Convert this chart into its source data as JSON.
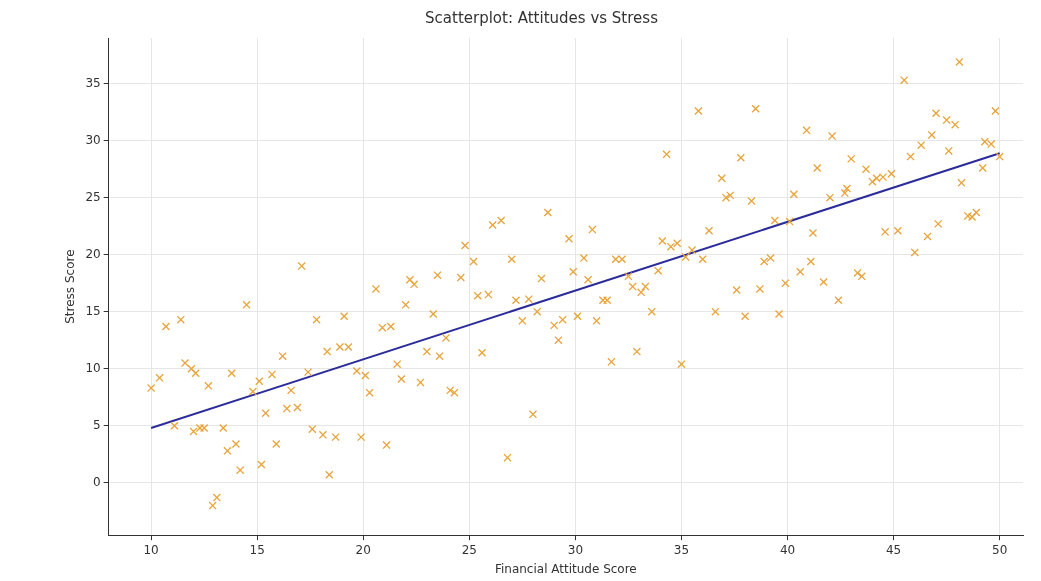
{
  "chart_data": {
    "type": "scatter",
    "title": "Scatterplot: Attitudes vs Stress",
    "xlabel": "Financial Attitude Score",
    "ylabel": "Stress Score",
    "xlim": [
      8,
      51.1
    ],
    "ylim": [
      -4.6,
      39
    ],
    "xticks": [
      10,
      15,
      20,
      25,
      30,
      35,
      40,
      45,
      50
    ],
    "yticks": [
      0,
      5,
      10,
      15,
      20,
      25,
      30,
      35
    ],
    "grid": true,
    "series": [
      {
        "type": "scatter",
        "marker": "cross",
        "color": "#e8a33a",
        "x": [
          10.0,
          10.4,
          10.7,
          11.1,
          11.4,
          11.6,
          11.9,
          12.1,
          12.0,
          12.3,
          12.5,
          12.7,
          12.9,
          13.1,
          13.4,
          13.6,
          13.8,
          14.0,
          14.2,
          14.5,
          14.8,
          15.1,
          15.2,
          15.4,
          15.7,
          15.9,
          16.2,
          16.4,
          16.6,
          16.9,
          17.1,
          17.4,
          17.6,
          17.8,
          18.1,
          18.3,
          18.4,
          18.7,
          18.9,
          19.1,
          19.3,
          19.7,
          19.9,
          20.1,
          20.3,
          20.6,
          20.9,
          21.1,
          21.3,
          21.6,
          21.8,
          22.0,
          22.2,
          22.4,
          22.7,
          23.0,
          23.3,
          23.5,
          23.6,
          23.9,
          24.1,
          24.3,
          24.6,
          24.8,
          25.2,
          25.4,
          25.6,
          25.9,
          26.1,
          26.5,
          26.8,
          27.0,
          27.2,
          27.5,
          27.8,
          28.0,
          28.2,
          28.4,
          28.7,
          29.0,
          29.2,
          29.4,
          29.7,
          29.9,
          30.1,
          30.4,
          30.6,
          30.8,
          31.0,
          31.3,
          31.5,
          31.7,
          31.9,
          32.2,
          32.5,
          32.7,
          32.9,
          33.1,
          33.3,
          33.6,
          33.9,
          34.1,
          34.3,
          34.5,
          34.8,
          35.0,
          35.2,
          35.5,
          35.8,
          36.0,
          36.3,
          36.6,
          36.9,
          37.1,
          37.3,
          37.6,
          37.8,
          38.0,
          38.3,
          38.5,
          38.7,
          38.9,
          39.2,
          39.4,
          39.6,
          39.9,
          40.1,
          40.3,
          40.6,
          40.9,
          41.1,
          41.2,
          41.4,
          41.7,
          42.0,
          42.1,
          42.4,
          42.7,
          42.8,
          43.0,
          43.3,
          43.5,
          43.7,
          44.0,
          44.2,
          44.5,
          44.6,
          44.9,
          45.2,
          45.5,
          45.8,
          46.0,
          46.3,
          46.6,
          46.8,
          47.0,
          47.1,
          47.5,
          47.6,
          47.9,
          48.1,
          48.2,
          48.5,
          48.7,
          48.9,
          49.2,
          49.3,
          49.6,
          49.8,
          50.0
        ],
        "values": [
          8.3,
          9.2,
          13.7,
          5.0,
          14.3,
          10.5,
          10.0,
          9.6,
          4.5,
          4.8,
          4.8,
          8.5,
          -2.0,
          -1.3,
          4.8,
          2.8,
          9.6,
          3.4,
          1.1,
          15.6,
          8.0,
          8.9,
          1.6,
          6.1,
          9.5,
          3.4,
          11.1,
          6.5,
          8.1,
          6.6,
          19.0,
          9.7,
          4.7,
          14.3,
          4.2,
          11.5,
          0.7,
          4.0,
          11.9,
          14.6,
          11.9,
          9.8,
          4.0,
          9.4,
          7.9,
          17.0,
          13.6,
          3.3,
          13.7,
          10.4,
          9.1,
          15.6,
          17.8,
          17.4,
          8.8,
          11.5,
          14.8,
          18.2,
          11.1,
          12.7,
          8.1,
          7.9,
          18.0,
          20.8,
          19.4,
          16.4,
          11.4,
          16.5,
          22.6,
          23.0,
          2.2,
          19.6,
          16.0,
          14.2,
          16.1,
          6.0,
          15.0,
          17.9,
          23.7,
          13.8,
          12.5,
          14.3,
          21.4,
          18.5,
          14.6,
          19.7,
          17.8,
          22.2,
          14.2,
          16.0,
          16.0,
          10.6,
          19.6,
          19.6,
          18.1,
          17.2,
          11.5,
          16.7,
          17.2,
          15.0,
          18.6,
          21.2,
          28.8,
          20.7,
          21.0,
          10.4,
          19.8,
          20.4,
          32.6,
          19.6,
          22.1,
          15.0,
          26.7,
          25.0,
          25.2,
          16.9,
          28.5,
          14.6,
          24.7,
          32.8,
          17.0,
          19.4,
          19.7,
          23.0,
          14.8,
          17.5,
          22.9,
          25.3,
          18.5,
          30.9,
          19.4,
          21.9,
          27.6,
          17.6,
          25.0,
          30.4,
          16.0,
          25.4,
          25.8,
          28.4,
          18.4,
          18.1,
          27.5,
          26.4,
          26.7,
          26.8,
          22.0,
          27.1,
          22.1,
          35.3,
          28.6,
          20.2,
          29.6,
          21.6,
          30.5,
          32.4,
          22.7,
          31.8,
          29.1,
          31.4,
          36.9,
          26.3,
          23.4,
          23.3,
          23.7,
          27.6,
          29.9,
          29.7,
          32.6,
          28.6
        ]
      },
      {
        "type": "line",
        "marker": "none",
        "color": "#2b2b9a",
        "x": [
          10,
          50
        ],
        "values": [
          4.8,
          28.9
        ]
      }
    ]
  }
}
